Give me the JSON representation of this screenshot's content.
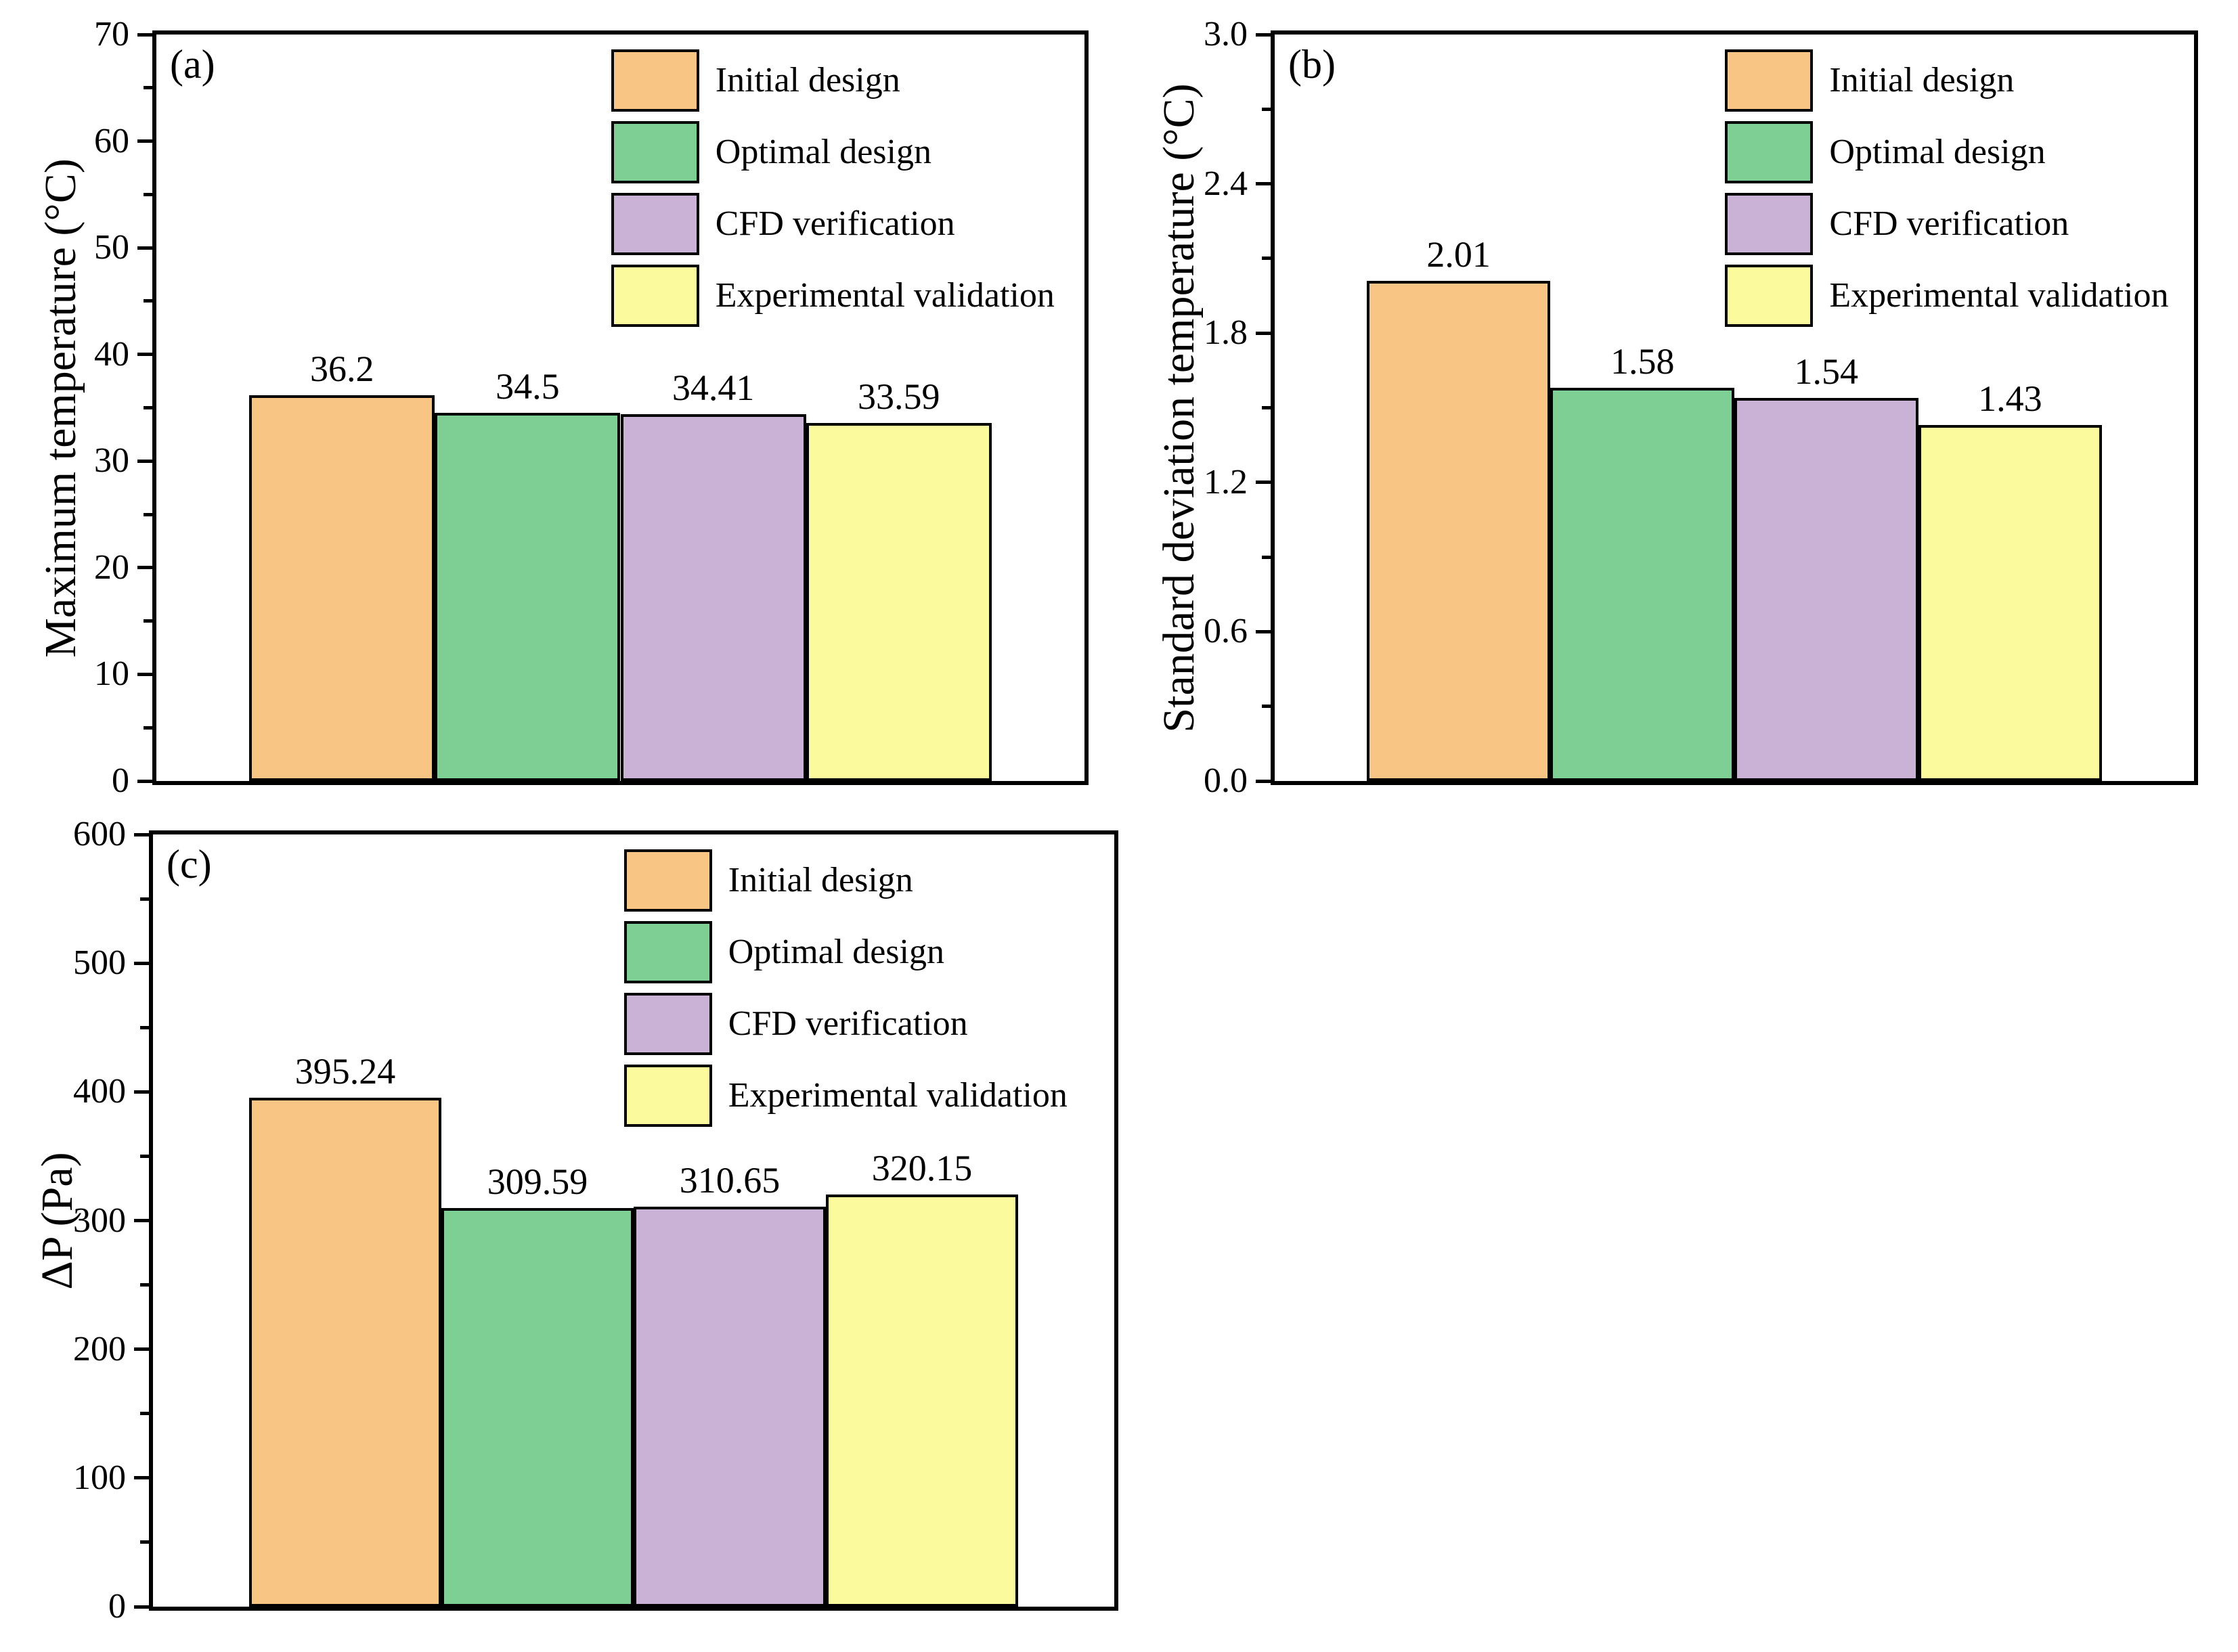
{
  "figure": {
    "background": "#ffffff",
    "axis_color": "#000000",
    "series_colors": [
      "#F9C585",
      "#7DCF94",
      "#C9B2D5",
      "#FBFB9E"
    ]
  },
  "legend": {
    "position": "top-right-inside",
    "items": [
      {
        "label": "Initial design",
        "color": "#F9C585"
      },
      {
        "label": "Optimal design",
        "color": "#7DCF94"
      },
      {
        "label": "CFD verification",
        "color": "#C9B2D5"
      },
      {
        "label": "Experimental validation",
        "color": "#FBFB9E"
      }
    ]
  },
  "chart_data": [
    {
      "id": "a",
      "panel_label": "(a)",
      "type": "bar",
      "title": "",
      "xlabel": "",
      "ylabel": "Maximum temperature (°C)",
      "ylim": [
        0,
        70
      ],
      "yticks": [
        0,
        10,
        20,
        30,
        40,
        50,
        60,
        70
      ],
      "ytick_labels": [
        "0",
        "10",
        "20",
        "30",
        "40",
        "50",
        "60",
        "70"
      ],
      "minor_ticks": [
        5,
        15,
        25,
        35,
        45,
        55,
        65
      ],
      "grid": false,
      "legend_position": "top-right",
      "categories": [
        "Initial design",
        "Optimal design",
        "CFD verification",
        "Experimental validation"
      ],
      "values": [
        36.2,
        34.5,
        34.41,
        33.59
      ],
      "value_labels": [
        "36.2",
        "34.5",
        "34.41",
        "33.59"
      ]
    },
    {
      "id": "b",
      "panel_label": "(b)",
      "type": "bar",
      "title": "",
      "xlabel": "",
      "ylabel": "Standard deviation temperature (°C)",
      "ylim": [
        0,
        3.0
      ],
      "yticks": [
        0.0,
        0.6,
        1.2,
        1.8,
        2.4,
        3.0
      ],
      "ytick_labels": [
        "0.0",
        "0.6",
        "1.2",
        "1.8",
        "2.4",
        "3.0"
      ],
      "minor_ticks": [
        0.3,
        0.9,
        1.5,
        2.1,
        2.7
      ],
      "grid": false,
      "legend_position": "top-right",
      "categories": [
        "Initial design",
        "Optimal design",
        "CFD verification",
        "Experimental validation"
      ],
      "values": [
        2.01,
        1.58,
        1.54,
        1.43
      ],
      "value_labels": [
        "2.01",
        "1.58",
        "1.54",
        "1.43"
      ]
    },
    {
      "id": "c",
      "panel_label": "(c)",
      "type": "bar",
      "title": "",
      "xlabel": "",
      "ylabel": "ΔP (Pa)",
      "ylim": [
        0,
        600
      ],
      "yticks": [
        0,
        100,
        200,
        300,
        400,
        500,
        600
      ],
      "ytick_labels": [
        "0",
        "100",
        "200",
        "300",
        "400",
        "500",
        "600"
      ],
      "minor_ticks": [
        50,
        150,
        250,
        350,
        450,
        550
      ],
      "grid": false,
      "legend_position": "top-right",
      "categories": [
        "Initial design",
        "Optimal design",
        "CFD verification",
        "Experimental validation"
      ],
      "values": [
        395.24,
        309.59,
        310.65,
        320.15
      ],
      "value_labels": [
        "395.24",
        "309.59",
        "310.65",
        "320.15"
      ]
    }
  ]
}
